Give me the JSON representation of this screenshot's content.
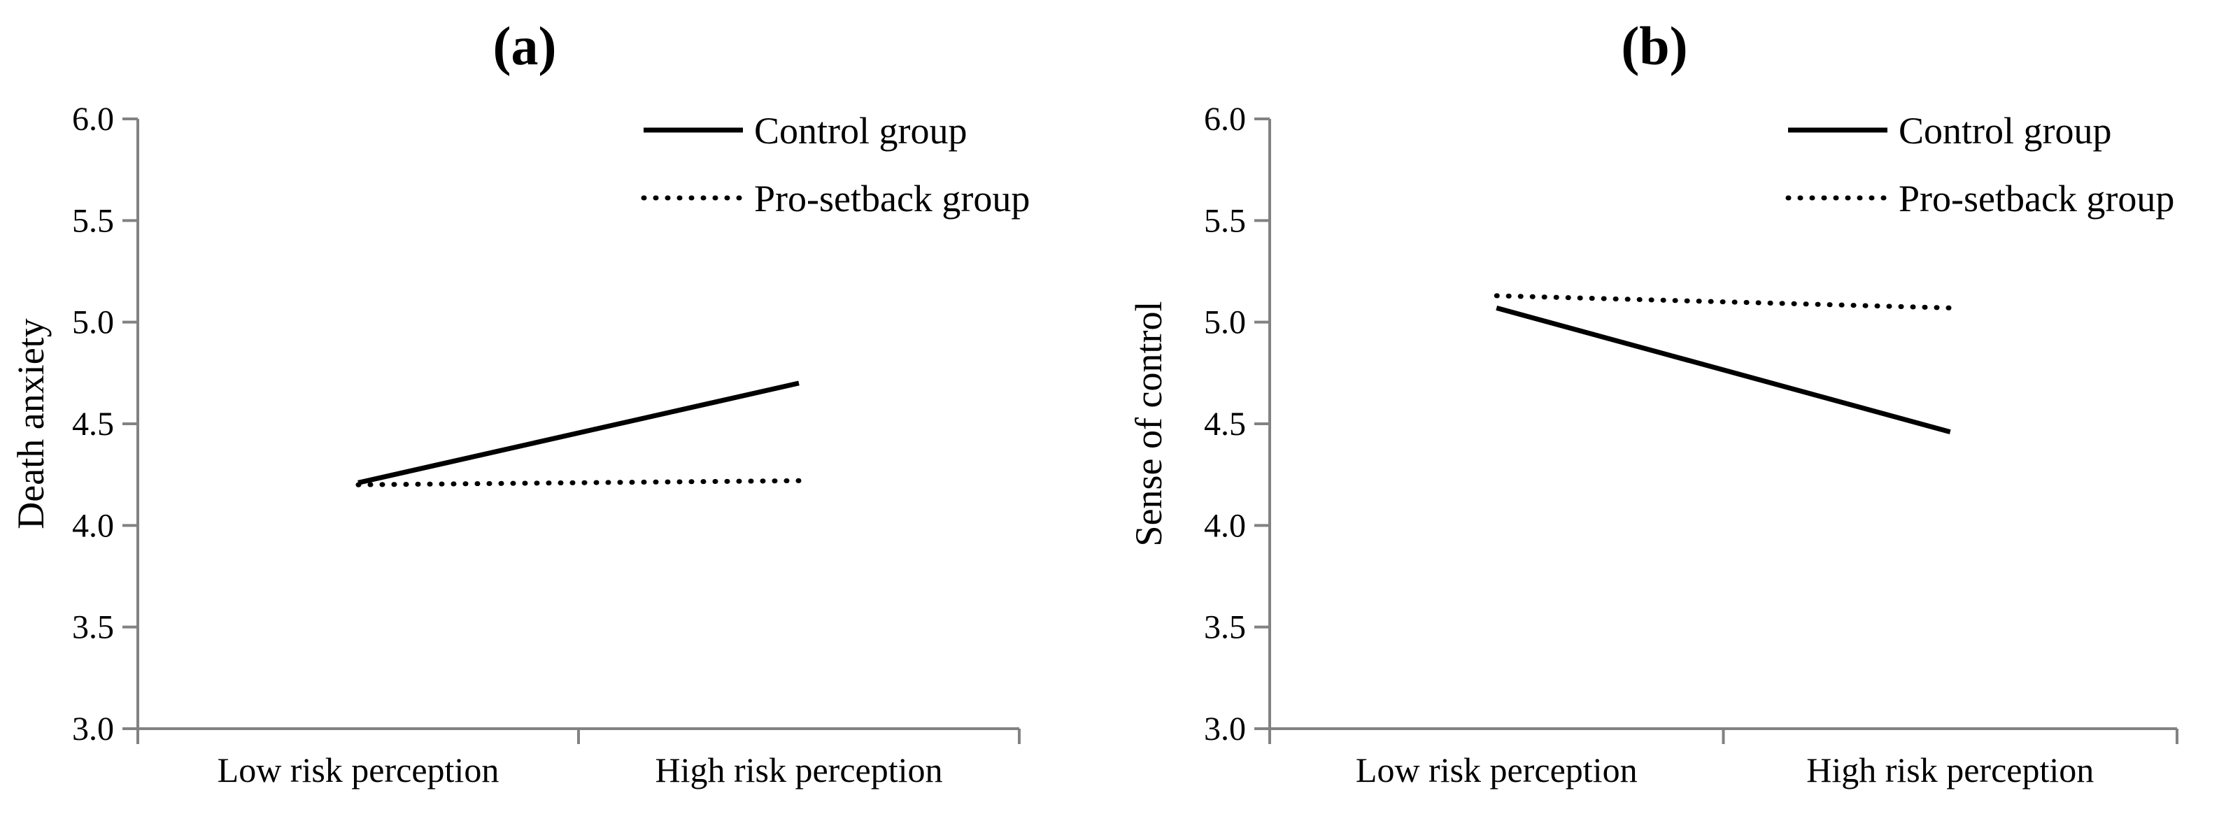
{
  "colors": {
    "background": "#ffffff",
    "axis": "#828282",
    "line": "#000000",
    "text": "#000000"
  },
  "chart_data": [
    {
      "type": "line",
      "panel_label": "(a)",
      "xlabel": "",
      "ylabel": "Death anxiety",
      "categories": [
        "Low risk perception",
        "High risk perception"
      ],
      "series": [
        {
          "name": "Control group",
          "line_style": "solid",
          "values": [
            4.21,
            4.7
          ]
        },
        {
          "name": "Pro-setback group",
          "line_style": "dotted",
          "values": [
            4.2,
            4.22
          ]
        }
      ],
      "ylim": [
        3.0,
        6.0
      ],
      "ytick_labels": [
        "6.0",
        "5.5",
        "5.0",
        "4.5",
        "4.0",
        "3.5",
        "3.0"
      ],
      "grid": false,
      "legend_position": "top-right",
      "legend_entries": [
        "Control group",
        "Pro-setback group"
      ]
    },
    {
      "type": "line",
      "panel_label": "(b)",
      "xlabel": "",
      "ylabel": "Sense of control",
      "categories": [
        "Low risk perception",
        "High risk perception"
      ],
      "series": [
        {
          "name": "Control group",
          "line_style": "solid",
          "values": [
            5.07,
            4.46
          ]
        },
        {
          "name": "Pro-setback group",
          "line_style": "dotted",
          "values": [
            5.13,
            5.07
          ]
        }
      ],
      "ylim": [
        3.0,
        6.0
      ],
      "ytick_labels": [
        "6.0",
        "5.5",
        "5.0",
        "4.5",
        "4.0",
        "3.5",
        "3.0"
      ],
      "grid": false,
      "legend_position": "top-right",
      "legend_entries": [
        "Control group",
        "Pro-setback group"
      ]
    }
  ]
}
